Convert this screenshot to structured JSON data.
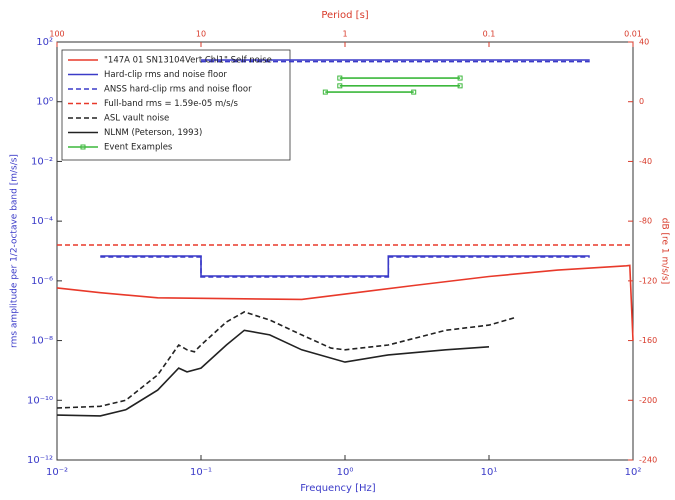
{
  "chart_data": {
    "type": "line",
    "xlabel": "Frequency [Hz]",
    "ylabel": "rms amplitude per 1/2-octave band [m/s/s]",
    "x2label": "Period [s]",
    "y2label": "dB [re 1 m/s/s]",
    "xscale": "log",
    "yscale": "log",
    "x2scale": "log",
    "xlim": [
      0.01,
      100
    ],
    "xticks": [
      {
        "value": 0.01,
        "label": "10⁻²"
      },
      {
        "value": 0.1,
        "label": "10⁻¹"
      },
      {
        "value": 1,
        "label": "10⁰"
      },
      {
        "value": 10,
        "label": "10¹"
      },
      {
        "value": 100,
        "label": "10²"
      }
    ],
    "ylim": [
      1e-12,
      100
    ],
    "yticks": [
      {
        "value": 100,
        "label": "10²"
      },
      {
        "value": 1,
        "label": "10⁰"
      },
      {
        "value": 0.01,
        "label": "10⁻²"
      },
      {
        "value": 0.0001,
        "label": "10⁻⁴"
      },
      {
        "value": 1e-06,
        "label": "10⁻⁶"
      },
      {
        "value": 1e-08,
        "label": "10⁻⁸"
      },
      {
        "value": 1e-10,
        "label": "10⁻¹⁰"
      },
      {
        "value": 1e-12,
        "label": "10⁻¹²"
      }
    ],
    "x2lim": [
      100,
      0.01
    ],
    "x2ticks": [
      100,
      10,
      1,
      0.1,
      0.01
    ],
    "y2lim": [
      -240,
      40
    ],
    "y2ticks": [
      40,
      0,
      -40,
      -80,
      -120,
      -160,
      -200,
      -240
    ],
    "legend": "upper left",
    "series": [
      {
        "name": "\"147A 01 SN13104Vert Chl1\" Self noise",
        "color": "#e8392a",
        "linestyle": "solid",
        "x": [
          0.01,
          0.02,
          0.05,
          0.1,
          0.2,
          0.5,
          1,
          3,
          10,
          30,
          90,
          95,
          100
        ],
        "values": [
          5.8e-07,
          4e-07,
          2.7e-07,
          2.6e-07,
          2.5e-07,
          2.4e-07,
          3.6e-07,
          7e-07,
          1.4e-06,
          2.3e-06,
          3.2e-06,
          3.3e-06,
          1e-08
        ]
      },
      {
        "name": "Hard-clip rms and noise floor",
        "color": "#3b3bc8",
        "linestyle": "solid",
        "x": [
          0.1,
          50,
          50,
          0.02,
          0.1,
          0.1,
          2,
          2,
          50
        ],
        "values": [
          25,
          25,
          null,
          6.8e-06,
          6.8e-06,
          1.45e-06,
          1.45e-06,
          6.8e-06,
          6.8e-06
        ]
      },
      {
        "name": "ANSS hard-clip rms and noise floor",
        "color": "#3b3bc8",
        "linestyle": "dashed",
        "x": [
          0.1,
          50,
          50,
          0.02,
          0.1,
          0.1,
          2,
          2,
          50
        ],
        "values": [
          22,
          22,
          null,
          6.3e-06,
          6.3e-06,
          1.35e-06,
          1.35e-06,
          6.3e-06,
          6.3e-06
        ]
      },
      {
        "name": "Full-band rms = 1.59e-05 m/s/s",
        "color": "#e8392a",
        "linestyle": "dashed",
        "x": [
          0.01,
          100
        ],
        "values": [
          1.59e-05,
          1.59e-05
        ]
      },
      {
        "name": "ASL vault noise",
        "color": "#222222",
        "linestyle": "dashed",
        "x": [
          0.01,
          0.02,
          0.03,
          0.05,
          0.07,
          0.08,
          0.09,
          0.1,
          0.15,
          0.2,
          0.3,
          0.5,
          0.8,
          1,
          2,
          5,
          10,
          15
        ],
        "values": [
          5.5e-11,
          6.3e-11,
          1e-10,
          7.1e-10,
          7.1e-09,
          4.9e-09,
          4.2e-09,
          7.1e-09,
          4.2e-08,
          9.1e-08,
          4.9e-08,
          1.55e-08,
          5.6e-09,
          4.9e-09,
          7.1e-09,
          2.2e-08,
          3.3e-08,
          5.8e-08
        ]
      },
      {
        "name": "NLNM (Peterson, 1993)",
        "color": "#222222",
        "linestyle": "solid",
        "x": [
          0.01,
          0.02,
          0.03,
          0.05,
          0.07,
          0.08,
          0.1,
          0.15,
          0.2,
          0.3,
          0.5,
          1,
          2,
          5,
          10
        ],
        "values": [
          3.2e-11,
          3e-11,
          4.8e-11,
          2.2e-10,
          1.2e-09,
          8.9e-10,
          1.2e-09,
          7.1e-09,
          2.2e-08,
          1.55e-08,
          4.9e-09,
          1.9e-09,
          3.3e-09,
          4.9e-09,
          6.2e-09
        ]
      },
      {
        "name": "Event Examples",
        "color": "#3cb83c",
        "linestyle": "solid",
        "marker": "square",
        "x": [
          0.92,
          6.3,
          6.3,
          0.92,
          6.3,
          6.3,
          0.73,
          3
        ],
        "values": [
          6.2,
          6.2,
          null,
          3.4,
          3.4,
          null,
          2.1,
          2.1
        ]
      }
    ]
  }
}
